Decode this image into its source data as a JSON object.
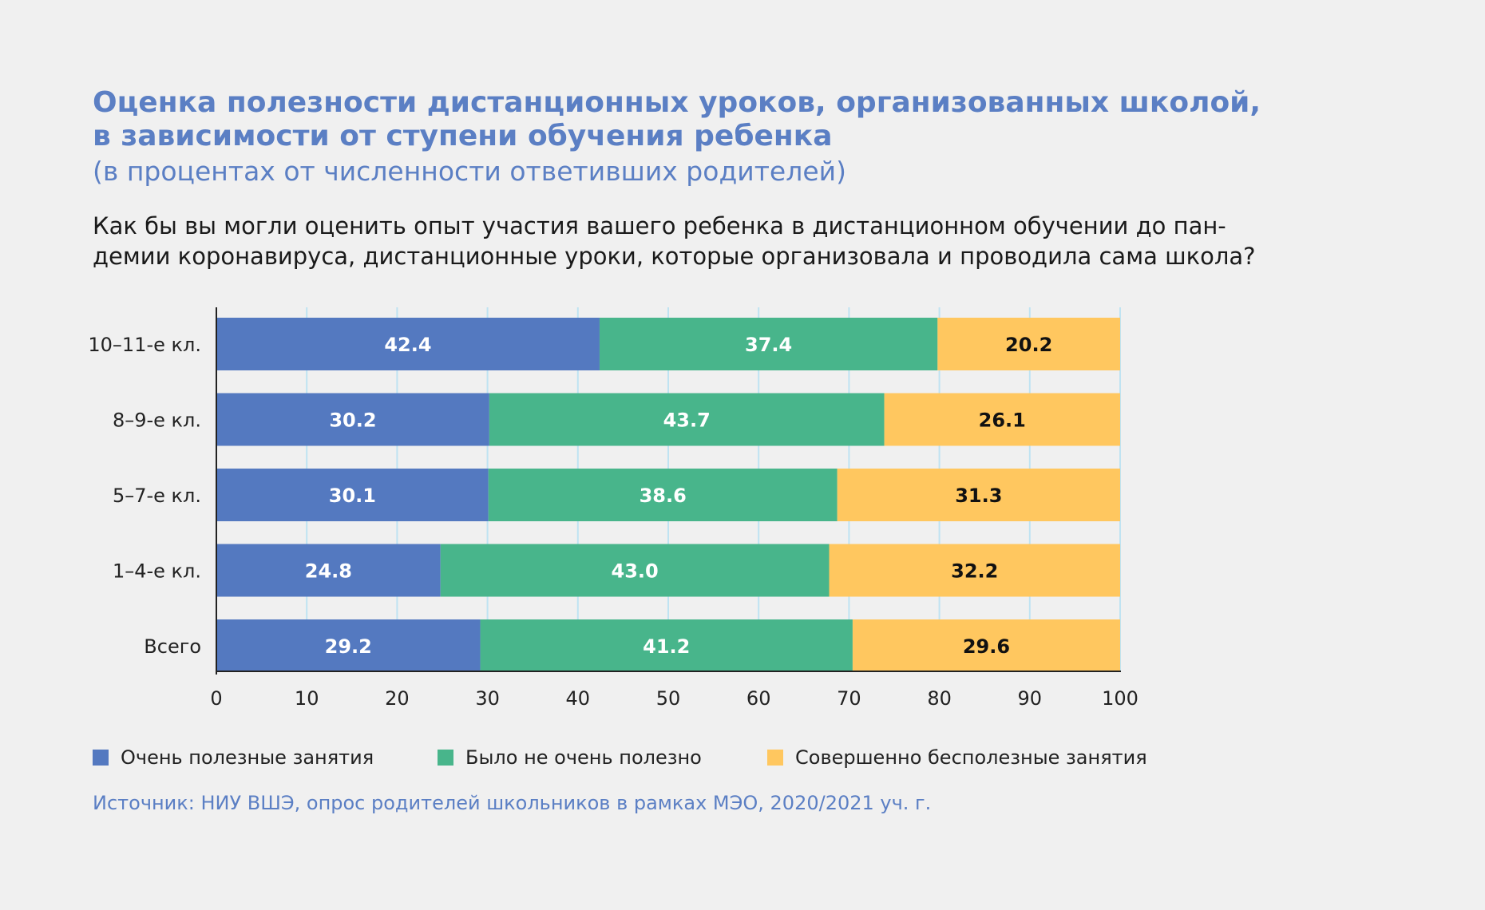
{
  "title_lines": [
    "Оценка полезности дистанционных уроков, организованных школой,",
    "в зависимости от ступени обучения ребенка"
  ],
  "subtitle": "(в процентах от численности ответивших родителей)",
  "question_lines": [
    "Как бы вы могли оценить опыт участия вашего ребенка в дистанционном обучении до пан-",
    "демии коронавируса, дистанционные уроки, которые организовала и проводила сама школа?"
  ],
  "source": "Источник: НИУ ВШЭ, опрос родителей школьников в рамках МЭО, 2020/2021 уч. г.",
  "colors": {
    "series_1": "#5479c0",
    "series_2": "#48b58b",
    "series_3": "#ffc75f",
    "label_light": "#ffffff",
    "label_dark": "#111111",
    "grid": "#bfe3f2",
    "axis": "#222222"
  },
  "chart_data": {
    "type": "bar",
    "orientation": "horizontal",
    "stacked": true,
    "categories": [
      "10–11-е кл.",
      "8–9-е кл.",
      "5–7-е кл.",
      "1–4-е кл.",
      "Всего"
    ],
    "series": [
      {
        "name": "Очень полезные занятия",
        "values": [
          42.4,
          30.2,
          30.1,
          24.8,
          29.2
        ]
      },
      {
        "name": "Было не очень полезно",
        "values": [
          37.4,
          43.7,
          38.6,
          43.0,
          41.2
        ]
      },
      {
        "name": "Совершенно бесполезные занятия",
        "values": [
          20.2,
          26.1,
          31.3,
          32.2,
          29.6
        ]
      }
    ],
    "value_labels": [
      [
        "42.4",
        "30.2",
        "30.1",
        "24.8",
        "29.2"
      ],
      [
        "37.4",
        "43.7",
        "38.6",
        "43.0",
        "41.2"
      ],
      [
        "20.2",
        "26.1",
        "31.3",
        "32.2",
        "29.6"
      ]
    ],
    "xlim": [
      0,
      100
    ],
    "xticks": [
      0,
      10,
      20,
      30,
      40,
      50,
      60,
      70,
      80,
      90,
      100
    ],
    "grid": true,
    "legend_position": "bottom"
  }
}
